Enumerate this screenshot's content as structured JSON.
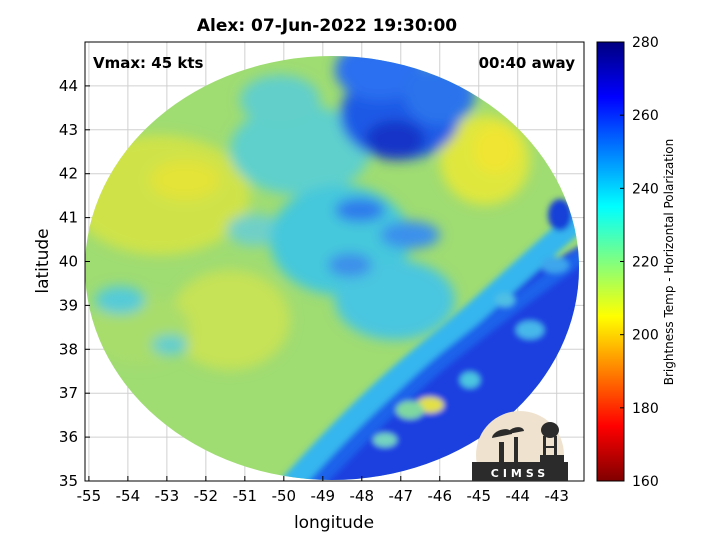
{
  "title": "Alex: 07-Jun-2022 19:30:00",
  "overlay": {
    "vmax": "Vmax: 45 kts",
    "time_away": "00:40 away"
  },
  "axes": {
    "xlabel": "longitude",
    "ylabel": "latitude",
    "x_ticks": [
      "-55",
      "-54",
      "-53",
      "-52",
      "-51",
      "-50",
      "-49",
      "-48",
      "-47",
      "-46",
      "-45",
      "-44",
      "-43"
    ],
    "y_ticks": [
      "35",
      "36",
      "37",
      "38",
      "39",
      "40",
      "41",
      "42",
      "43",
      "44"
    ],
    "xlim": [
      -55.1,
      -42.3
    ],
    "ylim": [
      35,
      45
    ]
  },
  "colorbar": {
    "label": "Brightness Temp - Horizontal Polarization",
    "ticks": [
      "160",
      "180",
      "200",
      "220",
      "240",
      "260",
      "280"
    ],
    "range": [
      160,
      280
    ],
    "colormap": [
      "#800000",
      "#ff0000",
      "#ff8000",
      "#ffff00",
      "#80ff80",
      "#00ffff",
      "#0080ff",
      "#0000ff",
      "#000080"
    ]
  },
  "logo": {
    "text": "CIMSS"
  },
  "colors": {
    "warm_field": "#a8e26a",
    "yellow_patch": "#e6e83a",
    "cyan_band": "#3fc4e8",
    "blue_band": "#1c3fe0",
    "deep_blue": "#0a1fb0",
    "grid": "#d0d0d0"
  }
}
